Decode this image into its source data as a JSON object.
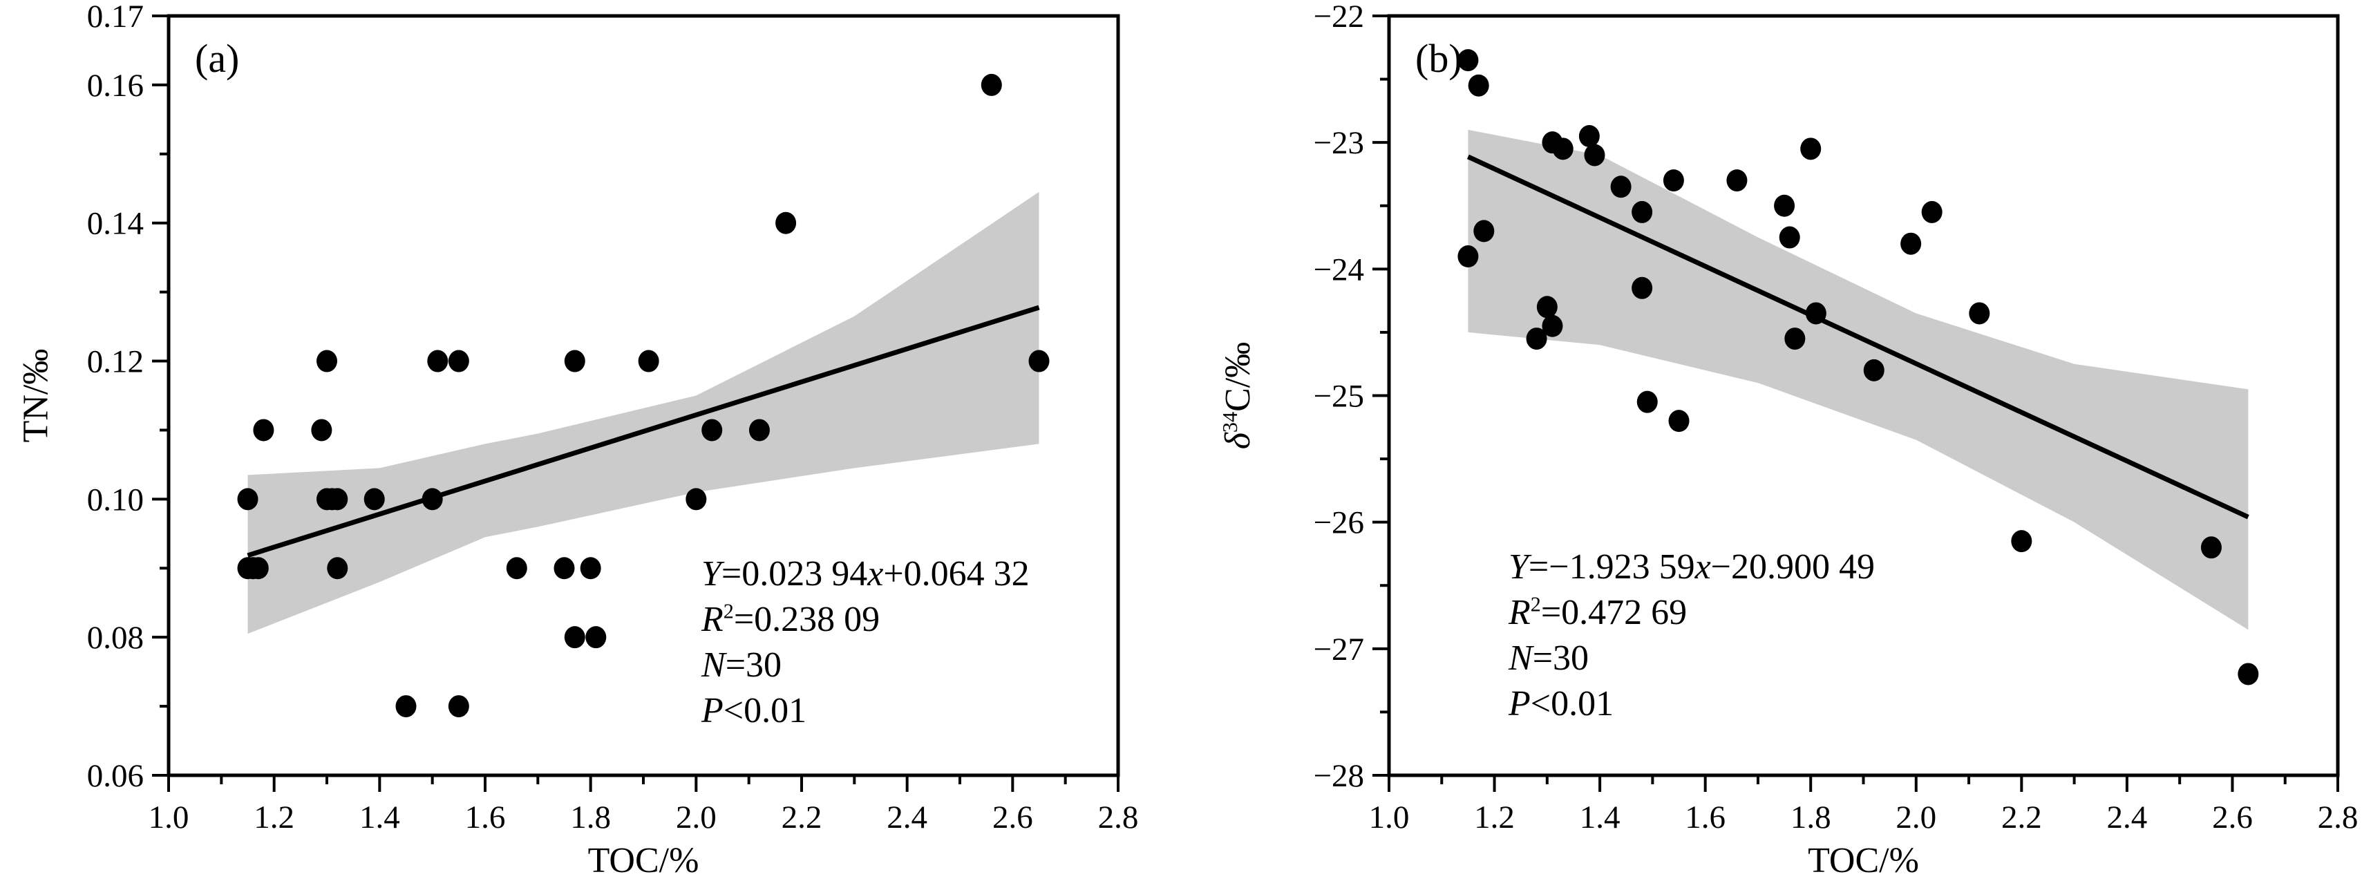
{
  "figure": {
    "background": "#ffffff",
    "text_color": "#000000"
  },
  "chart_data": [
    {
      "type": "scatter",
      "tag": "(a)",
      "xlabel": "TOC/%",
      "ylabel_segments": [
        {
          "t": "TN/‰"
        }
      ],
      "xlim": [
        1.0,
        2.8
      ],
      "ylim": [
        0.06,
        0.17
      ],
      "grid": false,
      "legend": "none",
      "x_ticks": {
        "major": [
          {
            "v": 1.0,
            "label": "1.0"
          },
          {
            "v": 1.2,
            "label": "1.2"
          },
          {
            "v": 1.4,
            "label": "1.4"
          },
          {
            "v": 1.6,
            "label": "1.6"
          },
          {
            "v": 1.8,
            "label": "1.8"
          },
          {
            "v": 2.0,
            "label": "2.0"
          },
          {
            "v": 2.2,
            "label": "2.2"
          },
          {
            "v": 2.4,
            "label": "2.4"
          },
          {
            "v": 2.6,
            "label": "2.6"
          },
          {
            "v": 2.8,
            "label": "2.8"
          }
        ],
        "minor": [
          1.1,
          1.3,
          1.5,
          1.7,
          1.9,
          2.1,
          2.3,
          2.5,
          2.7
        ]
      },
      "y_ticks": {
        "major": [
          {
            "v": 0.06,
            "label": "0.06"
          },
          {
            "v": 0.08,
            "label": "0.08"
          },
          {
            "v": 0.1,
            "label": "0.10"
          },
          {
            "v": 0.12,
            "label": "0.12"
          },
          {
            "v": 0.14,
            "label": "0.14"
          },
          {
            "v": 0.16,
            "label": "0.16"
          },
          {
            "v": 0.17,
            "label": "0.17"
          }
        ],
        "minor": [
          0.07,
          0.09,
          0.11,
          0.13,
          0.15
        ]
      },
      "points": [
        [
          1.15,
          0.1
        ],
        [
          1.15,
          0.09
        ],
        [
          1.16,
          0.09
        ],
        [
          1.17,
          0.09
        ],
        [
          1.18,
          0.11
        ],
        [
          1.29,
          0.11
        ],
        [
          1.3,
          0.12
        ],
        [
          1.3,
          0.1
        ],
        [
          1.31,
          0.1
        ],
        [
          1.32,
          0.1
        ],
        [
          1.32,
          0.09
        ],
        [
          1.39,
          0.1
        ],
        [
          1.45,
          0.07
        ],
        [
          1.5,
          0.1
        ],
        [
          1.51,
          0.12
        ],
        [
          1.55,
          0.12
        ],
        [
          1.55,
          0.07
        ],
        [
          1.66,
          0.09
        ],
        [
          1.75,
          0.09
        ],
        [
          1.77,
          0.12
        ],
        [
          1.77,
          0.08
        ],
        [
          1.8,
          0.09
        ],
        [
          1.81,
          0.08
        ],
        [
          1.91,
          0.12
        ],
        [
          2.0,
          0.1
        ],
        [
          2.03,
          0.11
        ],
        [
          2.12,
          0.11
        ],
        [
          2.17,
          0.14
        ],
        [
          2.56,
          0.16
        ],
        [
          2.65,
          0.12
        ]
      ],
      "regression": {
        "equation_text": "Y=0.023 94x+0.064 32",
        "slope": 0.02394,
        "intercept": 0.06432,
        "x_range": [
          1.15,
          2.65
        ]
      },
      "confidence_band": {
        "upper": [
          [
            1.15,
            0.1035
          ],
          [
            1.4,
            0.1045
          ],
          [
            1.6,
            0.108
          ],
          [
            1.7,
            0.1095
          ],
          [
            2.0,
            0.115
          ],
          [
            2.3,
            0.1265
          ],
          [
            2.65,
            0.1445
          ]
        ],
        "lower": [
          [
            1.15,
            0.0805
          ],
          [
            1.4,
            0.088
          ],
          [
            1.6,
            0.0945
          ],
          [
            1.7,
            0.096
          ],
          [
            2.0,
            0.101
          ],
          [
            2.3,
            0.1045
          ],
          [
            2.65,
            0.108
          ]
        ]
      },
      "annotation": {
        "lines": [
          [
            {
              "t": "Y",
              "i": true
            },
            {
              "t": "=0.023 94"
            },
            {
              "t": "x",
              "i": true
            },
            {
              "t": "+0.064 32"
            }
          ],
          [
            {
              "t": "R",
              "i": true
            },
            {
              "t": "2",
              "sup": true
            },
            {
              "t": "=0.238 09"
            }
          ],
          [
            {
              "t": "N",
              "i": true
            },
            {
              "t": "=30"
            }
          ],
          [
            {
              "t": "P",
              "i": true
            },
            {
              "t": "<0.01"
            }
          ]
        ],
        "stats": {
          "r_squared": "0.238 09",
          "n": "30",
          "p": "<0.01"
        }
      },
      "colors": {
        "point": "#000000",
        "line": "#000000",
        "band": "#cbcbcb",
        "axis": "#000000"
      }
    },
    {
      "type": "scatter",
      "tag": "(b)",
      "xlabel": "TOC/%",
      "ylabel_segments": [
        {
          "t": "δ",
          "i": true
        },
        {
          "t": "34",
          "sup": true
        },
        {
          "t": "C/‰"
        }
      ],
      "xlim": [
        1.0,
        2.8
      ],
      "ylim": [
        -28,
        -22
      ],
      "grid": false,
      "legend": "none",
      "x_ticks": {
        "major": [
          {
            "v": 1.0,
            "label": "1.0"
          },
          {
            "v": 1.2,
            "label": "1.2"
          },
          {
            "v": 1.4,
            "label": "1.4"
          },
          {
            "v": 1.6,
            "label": "1.6"
          },
          {
            "v": 1.8,
            "label": "1.8"
          },
          {
            "v": 2.0,
            "label": "2.0"
          },
          {
            "v": 2.2,
            "label": "2.2"
          },
          {
            "v": 2.4,
            "label": "2.4"
          },
          {
            "v": 2.6,
            "label": "2.6"
          },
          {
            "v": 2.8,
            "label": "2.8"
          }
        ],
        "minor": [
          1.1,
          1.3,
          1.5,
          1.7,
          1.9,
          2.1,
          2.3,
          2.5,
          2.7
        ]
      },
      "y_ticks": {
        "major": [
          {
            "v": -28,
            "label": "−28"
          },
          {
            "v": -27,
            "label": "−27"
          },
          {
            "v": -26,
            "label": "−26"
          },
          {
            "v": -25,
            "label": "−25"
          },
          {
            "v": -24,
            "label": "−24"
          },
          {
            "v": -23,
            "label": "−23"
          },
          {
            "v": -22,
            "label": "−22"
          }
        ],
        "minor": [
          -27.5,
          -26.5,
          -25.5,
          -24.5,
          -23.5,
          -22.5
        ]
      },
      "points": [
        [
          1.15,
          -22.35
        ],
        [
          1.17,
          -22.55
        ],
        [
          1.15,
          -23.9
        ],
        [
          1.18,
          -23.7
        ],
        [
          1.31,
          -23.0
        ],
        [
          1.33,
          -23.05
        ],
        [
          1.38,
          -22.95
        ],
        [
          1.39,
          -23.1
        ],
        [
          1.28,
          -24.55
        ],
        [
          1.3,
          -24.3
        ],
        [
          1.31,
          -24.45
        ],
        [
          1.44,
          -23.35
        ],
        [
          1.48,
          -23.55
        ],
        [
          1.48,
          -24.15
        ],
        [
          1.49,
          -25.05
        ],
        [
          1.55,
          -25.2
        ],
        [
          1.54,
          -23.3
        ],
        [
          1.66,
          -23.3
        ],
        [
          1.75,
          -23.5
        ],
        [
          1.76,
          -23.75
        ],
        [
          1.8,
          -23.05
        ],
        [
          1.77,
          -24.55
        ],
        [
          1.81,
          -24.35
        ],
        [
          1.92,
          -24.8
        ],
        [
          1.99,
          -23.8
        ],
        [
          2.03,
          -23.55
        ],
        [
          2.12,
          -24.35
        ],
        [
          2.2,
          -26.15
        ],
        [
          2.56,
          -26.2
        ],
        [
          2.63,
          -27.2
        ]
      ],
      "regression": {
        "equation_text": "Y=−1.923 59x−20.900 49",
        "slope": -1.92359,
        "intercept": -20.90049,
        "x_range": [
          1.15,
          2.63
        ]
      },
      "confidence_band": {
        "upper": [
          [
            1.15,
            -22.9
          ],
          [
            1.4,
            -23.1
          ],
          [
            1.7,
            -23.75
          ],
          [
            2.0,
            -24.35
          ],
          [
            2.3,
            -24.75
          ],
          [
            2.63,
            -24.95
          ]
        ],
        "lower": [
          [
            1.15,
            -24.5
          ],
          [
            1.4,
            -24.6
          ],
          [
            1.7,
            -24.9
          ],
          [
            2.0,
            -25.35
          ],
          [
            2.3,
            -26.0
          ],
          [
            2.63,
            -26.85
          ]
        ]
      },
      "annotation": {
        "lines": [
          [
            {
              "t": "Y",
              "i": true
            },
            {
              "t": "=−1.923 59"
            },
            {
              "t": "x",
              "i": true
            },
            {
              "t": "−20.900 49"
            }
          ],
          [
            {
              "t": "R",
              "i": true
            },
            {
              "t": "2",
              "sup": true
            },
            {
              "t": "=0.472 69"
            }
          ],
          [
            {
              "t": "N",
              "i": true
            },
            {
              "t": "=30"
            }
          ],
          [
            {
              "t": "P",
              "i": true
            },
            {
              "t": "<0.01"
            }
          ]
        ],
        "stats": {
          "r_squared": "0.472 69",
          "n": "30",
          "p": "<0.01"
        }
      },
      "colors": {
        "point": "#000000",
        "line": "#000000",
        "band": "#cbcbcb",
        "axis": "#000000"
      }
    }
  ]
}
